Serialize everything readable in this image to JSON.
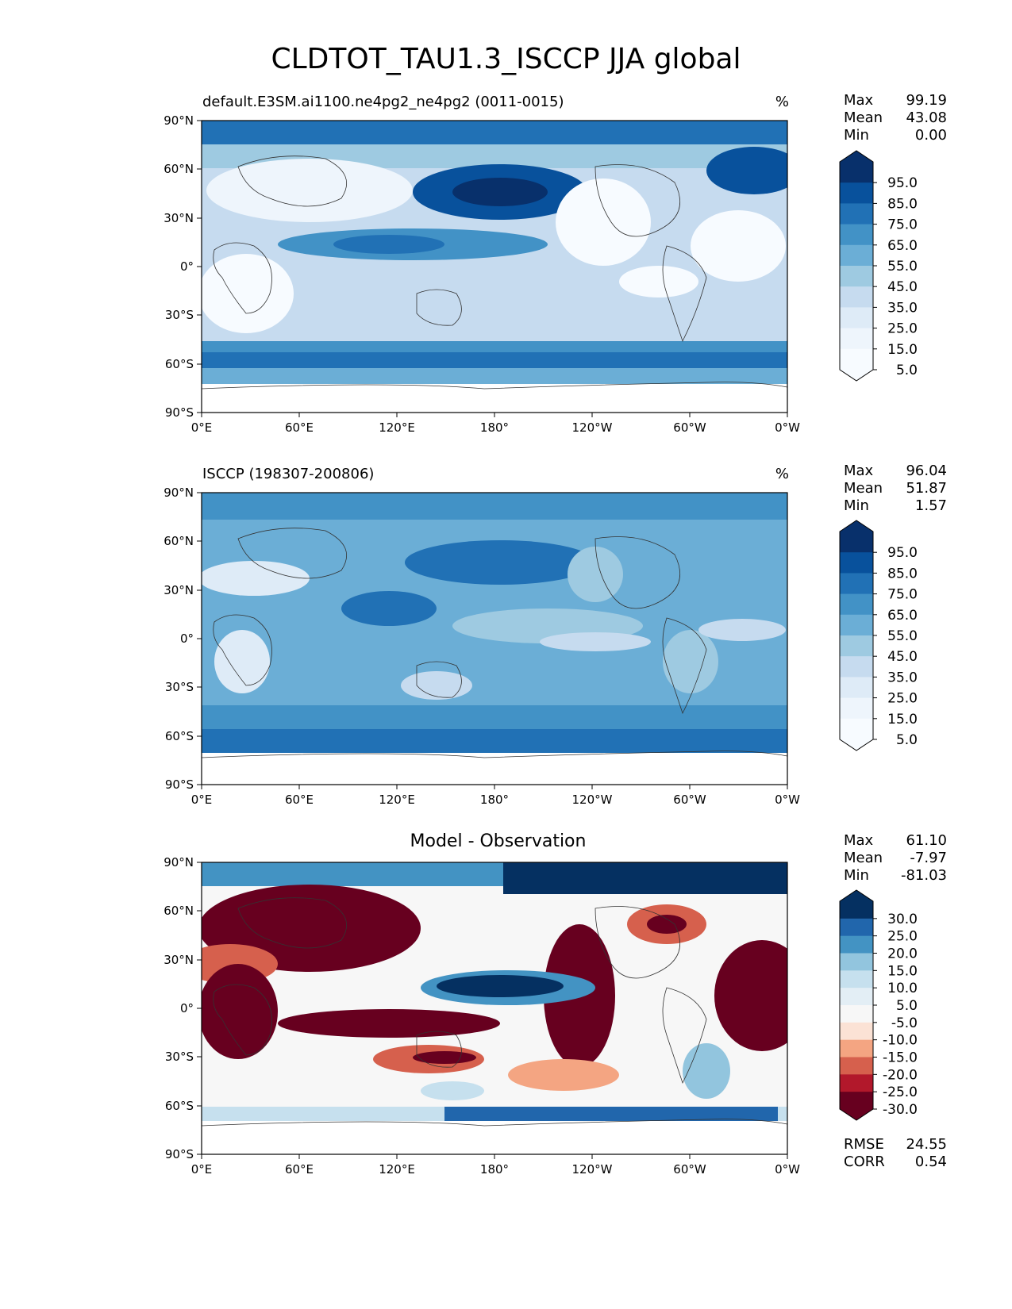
{
  "title": "CLDTOT_TAU1.3_ISCCP JJA global",
  "lat_ticks": [
    "90°N",
    "60°N",
    "30°N",
    "0°",
    "30°S",
    "60°S",
    "90°S"
  ],
  "lon_ticks": [
    "0°E",
    "60°E",
    "120°E",
    "180°",
    "120°W",
    "60°W",
    "0°W"
  ],
  "panels": [
    {
      "id": "model",
      "title_left": "default.E3SM.ai1100.ne4pg2_ne4pg2 (0011-0015)",
      "units": "%",
      "stats": [
        {
          "label": "Max",
          "value": "99.19"
        },
        {
          "label": "Mean",
          "value": "43.08"
        },
        {
          "label": "Min",
          "value": "0.00"
        }
      ],
      "colorbar": {
        "labels": [
          "95.0",
          "85.0",
          "75.0",
          "65.0",
          "55.0",
          "45.0",
          "35.0",
          "25.0",
          "15.0",
          "5.0"
        ],
        "colors": [
          "#08306b",
          "#08519c",
          "#2171b5",
          "#4292c6",
          "#6baed6",
          "#9ecae1",
          "#c6dbef",
          "#deebf7",
          "#eef5fc",
          "#f7fbff"
        ]
      }
    },
    {
      "id": "obs",
      "title_left": "ISCCP (198307-200806)",
      "units": "%",
      "stats": [
        {
          "label": "Max",
          "value": "96.04"
        },
        {
          "label": "Mean",
          "value": "51.87"
        },
        {
          "label": "Min",
          "value": "1.57"
        }
      ],
      "colorbar": {
        "labels": [
          "95.0",
          "85.0",
          "75.0",
          "65.0",
          "55.0",
          "45.0",
          "35.0",
          "25.0",
          "15.0",
          "5.0"
        ],
        "colors": [
          "#08306b",
          "#08519c",
          "#2171b5",
          "#4292c6",
          "#6baed6",
          "#9ecae1",
          "#c6dbef",
          "#deebf7",
          "#eef5fc",
          "#f7fbff"
        ]
      }
    },
    {
      "id": "diff",
      "title_center": "Model - Observation",
      "stats": [
        {
          "label": "Max",
          "value": "61.10"
        },
        {
          "label": "Mean",
          "value": "-7.97"
        },
        {
          "label": "Min",
          "value": "-81.03"
        }
      ],
      "extra_stats": [
        {
          "label": "RMSE",
          "value": "24.55"
        },
        {
          "label": "CORR",
          "value": "0.54"
        }
      ],
      "colorbar": {
        "labels": [
          "30.0",
          "25.0",
          "20.0",
          "15.0",
          "10.0",
          "5.0",
          "-5.0",
          "-10.0",
          "-15.0",
          "-20.0",
          "-25.0",
          "-30.0"
        ],
        "colors": [
          "#053061",
          "#2166ac",
          "#4393c3",
          "#92c5de",
          "#c6e0ee",
          "#e3eef5",
          "#f7f7f7",
          "#fbe2d5",
          "#f4a582",
          "#d6604d",
          "#b2182b",
          "#67001f"
        ]
      }
    }
  ]
}
